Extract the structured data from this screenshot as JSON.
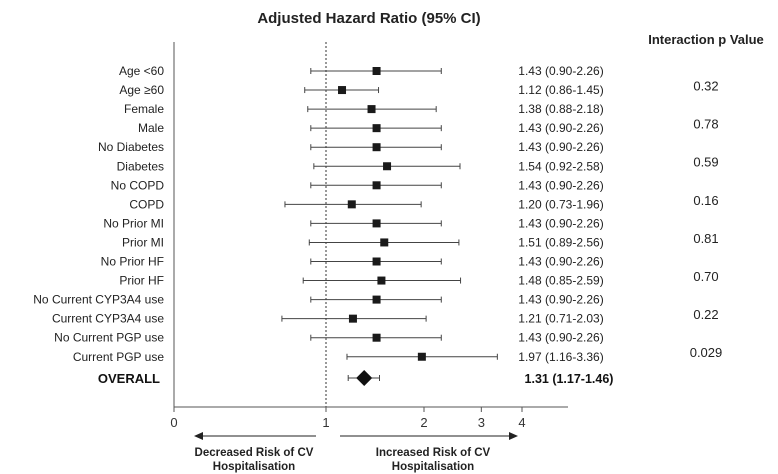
{
  "chart_data": {
    "type": "forest",
    "title": "Adjusted Hazard Ratio (95% CI)",
    "p_title": "Interaction p Value",
    "xscale": "log",
    "xlim": [
      0,
      4
    ],
    "xticks": [
      0,
      1,
      2,
      3,
      4
    ],
    "reference_line": 1,
    "rows": [
      {
        "label": "Age <60",
        "hr": 1.43,
        "lo": 0.9,
        "hi": 2.26,
        "ci_text": "1.43 (0.90-2.26)"
      },
      {
        "label": "Age ≥60",
        "hr": 1.12,
        "lo": 0.86,
        "hi": 1.45,
        "ci_text": "1.12 (0.86-1.45)"
      },
      {
        "label": "Female",
        "hr": 1.38,
        "lo": 0.88,
        "hi": 2.18,
        "ci_text": "1.38 (0.88-2.18)"
      },
      {
        "label": "Male",
        "hr": 1.43,
        "lo": 0.9,
        "hi": 2.26,
        "ci_text": "1.43 (0.90-2.26)"
      },
      {
        "label": "No Diabetes",
        "hr": 1.43,
        "lo": 0.9,
        "hi": 2.26,
        "ci_text": "1.43 (0.90-2.26)"
      },
      {
        "label": "Diabetes",
        "hr": 1.54,
        "lo": 0.92,
        "hi": 2.58,
        "ci_text": "1.54 (0.92-2.58)"
      },
      {
        "label": "No COPD",
        "hr": 1.43,
        "lo": 0.9,
        "hi": 2.26,
        "ci_text": "1.43 (0.90-2.26)"
      },
      {
        "label": "COPD",
        "hr": 1.2,
        "lo": 0.73,
        "hi": 1.96,
        "ci_text": "1.20 (0.73-1.96)"
      },
      {
        "label": "No Prior MI",
        "hr": 1.43,
        "lo": 0.9,
        "hi": 2.26,
        "ci_text": "1.43 (0.90-2.26)"
      },
      {
        "label": "Prior MI",
        "hr": 1.51,
        "lo": 0.89,
        "hi": 2.56,
        "ci_text": "1.51 (0.89-2.56)"
      },
      {
        "label": "No Prior HF",
        "hr": 1.43,
        "lo": 0.9,
        "hi": 2.26,
        "ci_text": "1.43 (0.90-2.26)"
      },
      {
        "label": "Prior HF",
        "hr": 1.48,
        "lo": 0.85,
        "hi": 2.59,
        "ci_text": "1.48 (0.85-2.59)"
      },
      {
        "label": "No Current CYP3A4 use",
        "hr": 1.43,
        "lo": 0.9,
        "hi": 2.26,
        "ci_text": "1.43 (0.90-2.26)"
      },
      {
        "label": "Current CYP3A4 use",
        "hr": 1.21,
        "lo": 0.71,
        "hi": 2.03,
        "ci_text": "1.21 (0.71-2.03)"
      },
      {
        "label": "No Current PGP use",
        "hr": 1.43,
        "lo": 0.9,
        "hi": 2.26,
        "ci_text": "1.43 (0.90-2.26)"
      },
      {
        "label": "Current PGP use",
        "hr": 1.97,
        "lo": 1.16,
        "hi": 3.36,
        "ci_text": "1.97 (1.16-3.36)"
      }
    ],
    "overall": {
      "label": "OVERALL",
      "hr": 1.31,
      "lo": 1.17,
      "hi": 1.46,
      "ci_text": "1.31 (1.17-1.46)"
    },
    "p_values": [
      "0.32",
      "0.78",
      "0.59",
      "0.16",
      "0.81",
      "0.70",
      "0.22",
      "0.029"
    ],
    "arrow_left": [
      "Decreased Risk of CV",
      "Hospitalisation"
    ],
    "arrow_right": [
      "Increased Risk of CV",
      "Hospitalisation"
    ]
  }
}
